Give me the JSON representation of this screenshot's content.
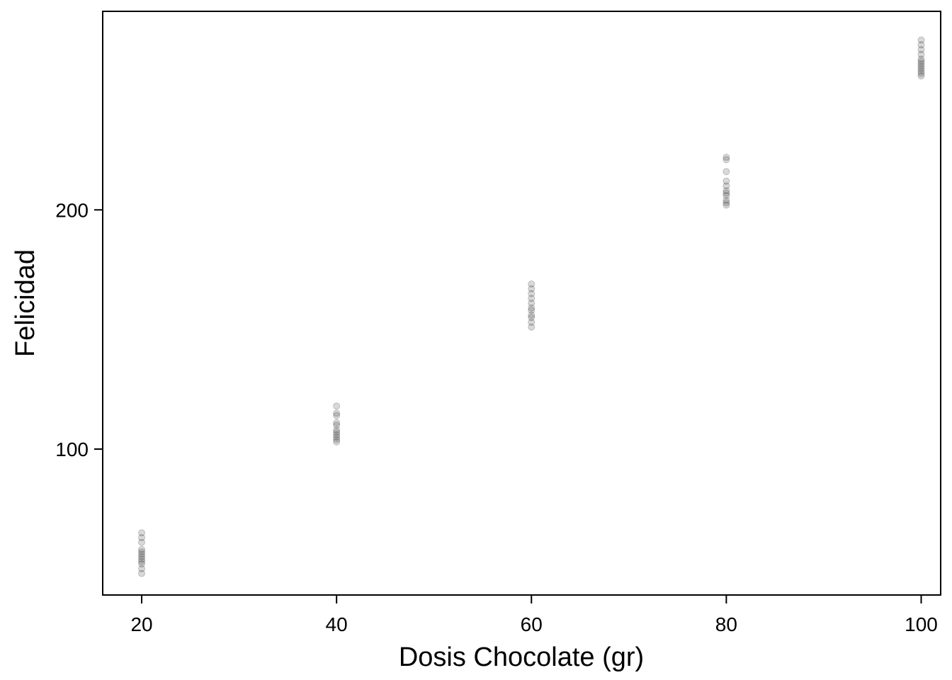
{
  "chart_data": {
    "type": "scatter",
    "title": "",
    "xlabel": "Dosis Chocolate (gr)",
    "ylabel": "Felicidad",
    "xlim": [
      16,
      102
    ],
    "ylim": [
      39,
      283
    ],
    "x_ticks": [
      20,
      40,
      60,
      80,
      100
    ],
    "x_tick_labels": [
      "20",
      "40",
      "60",
      "80",
      "100"
    ],
    "y_ticks": [
      100,
      200
    ],
    "y_tick_labels": [
      "100",
      "200"
    ],
    "grid": false,
    "legend": "none",
    "point_color": "#000000",
    "point_opacity": 0.15,
    "points": [
      {
        "x": 20,
        "y": 65
      },
      {
        "x": 20,
        "y": 63
      },
      {
        "x": 20,
        "y": 61
      },
      {
        "x": 20,
        "y": 58
      },
      {
        "x": 20,
        "y": 57
      },
      {
        "x": 20,
        "y": 56
      },
      {
        "x": 20,
        "y": 55
      },
      {
        "x": 20,
        "y": 54
      },
      {
        "x": 20,
        "y": 53
      },
      {
        "x": 20,
        "y": 52
      },
      {
        "x": 20,
        "y": 50
      },
      {
        "x": 20,
        "y": 48
      },
      {
        "x": 40,
        "y": 118
      },
      {
        "x": 40,
        "y": 115
      },
      {
        "x": 40,
        "y": 114
      },
      {
        "x": 40,
        "y": 111
      },
      {
        "x": 40,
        "y": 110
      },
      {
        "x": 40,
        "y": 108
      },
      {
        "x": 40,
        "y": 107
      },
      {
        "x": 40,
        "y": 106
      },
      {
        "x": 40,
        "y": 105
      },
      {
        "x": 40,
        "y": 104
      },
      {
        "x": 40,
        "y": 103
      },
      {
        "x": 60,
        "y": 169
      },
      {
        "x": 60,
        "y": 167
      },
      {
        "x": 60,
        "y": 165
      },
      {
        "x": 60,
        "y": 163
      },
      {
        "x": 60,
        "y": 161
      },
      {
        "x": 60,
        "y": 159
      },
      {
        "x": 60,
        "y": 158
      },
      {
        "x": 60,
        "y": 156
      },
      {
        "x": 60,
        "y": 155
      },
      {
        "x": 60,
        "y": 153
      },
      {
        "x": 60,
        "y": 151
      },
      {
        "x": 80,
        "y": 222
      },
      {
        "x": 80,
        "y": 221
      },
      {
        "x": 80,
        "y": 216
      },
      {
        "x": 80,
        "y": 212
      },
      {
        "x": 80,
        "y": 210
      },
      {
        "x": 80,
        "y": 208
      },
      {
        "x": 80,
        "y": 207
      },
      {
        "x": 80,
        "y": 206
      },
      {
        "x": 80,
        "y": 204
      },
      {
        "x": 80,
        "y": 203
      },
      {
        "x": 80,
        "y": 202
      },
      {
        "x": 100,
        "y": 271
      },
      {
        "x": 100,
        "y": 269
      },
      {
        "x": 100,
        "y": 267
      },
      {
        "x": 100,
        "y": 265
      },
      {
        "x": 100,
        "y": 263
      },
      {
        "x": 100,
        "y": 262
      },
      {
        "x": 100,
        "y": 261
      },
      {
        "x": 100,
        "y": 260
      },
      {
        "x": 100,
        "y": 259
      },
      {
        "x": 100,
        "y": 258
      },
      {
        "x": 100,
        "y": 257
      },
      {
        "x": 100,
        "y": 256
      }
    ]
  }
}
